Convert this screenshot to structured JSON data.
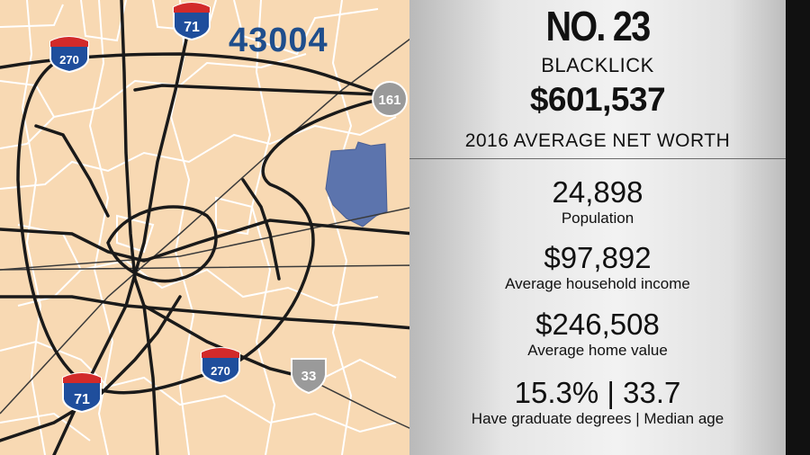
{
  "map": {
    "zip_code": "43004",
    "colors": {
      "land": "#f8d9b3",
      "boundary": "#ffffff",
      "roads": "#1a1a1a",
      "highlight": "#5c74ad"
    },
    "shields": [
      {
        "type": "interstate",
        "number": "71"
      },
      {
        "type": "interstate",
        "number": "270"
      },
      {
        "type": "state-route",
        "number": "161"
      },
      {
        "type": "interstate",
        "number": "270"
      },
      {
        "type": "us-route",
        "number": "33"
      },
      {
        "type": "interstate",
        "number": "71"
      }
    ]
  },
  "info": {
    "rank": "NO. 23",
    "city": "BLACKLICK",
    "net_worth": "$601,537",
    "net_worth_label": "2016 AVERAGE NET WORTH",
    "stats": [
      {
        "value": "24,898",
        "label": "Population"
      },
      {
        "value": "$97,892",
        "label": "Average household income"
      },
      {
        "value": "$246,508",
        "label": "Average home value"
      },
      {
        "value": "15.3% | 33.7",
        "label": "Have graduate degrees | Median age"
      }
    ]
  }
}
